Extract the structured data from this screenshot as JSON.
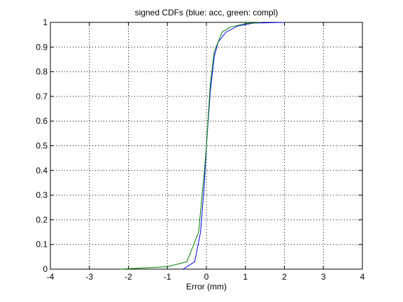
{
  "chart_data": {
    "type": "line",
    "title": "signed CDFs (blue: acc, green: compl)",
    "xlabel": "Error (mm)",
    "xlim": [
      -4,
      4
    ],
    "xticks": [
      -4,
      -3,
      -2,
      -1,
      0,
      1,
      2,
      3,
      4
    ],
    "ylim": [
      0,
      1
    ],
    "yticks": [
      0,
      0.1,
      0.2,
      0.3,
      0.4,
      0.5,
      0.6,
      0.7,
      0.8,
      0.9,
      1
    ],
    "grid": true,
    "series": [
      {
        "color": "#0000ff",
        "x": [
          -0.6,
          -0.3,
          -0.15,
          -0.05,
          0,
          0.1,
          0.2,
          0.3,
          0.5,
          0.8,
          1.2,
          2.0
        ],
        "values": [
          0,
          0.03,
          0.15,
          0.35,
          0.5,
          0.72,
          0.86,
          0.92,
          0.96,
          0.985,
          0.997,
          1
        ]
      },
      {
        "color": "#008000",
        "x": [
          -2.2,
          -1,
          -0.5,
          -0.2,
          -0.05,
          0,
          0.1,
          0.2,
          0.4,
          0.6,
          1.0,
          1.4
        ],
        "values": [
          0,
          0.01,
          0.03,
          0.15,
          0.4,
          0.5,
          0.75,
          0.88,
          0.96,
          0.98,
          0.995,
          1
        ]
      }
    ]
  }
}
